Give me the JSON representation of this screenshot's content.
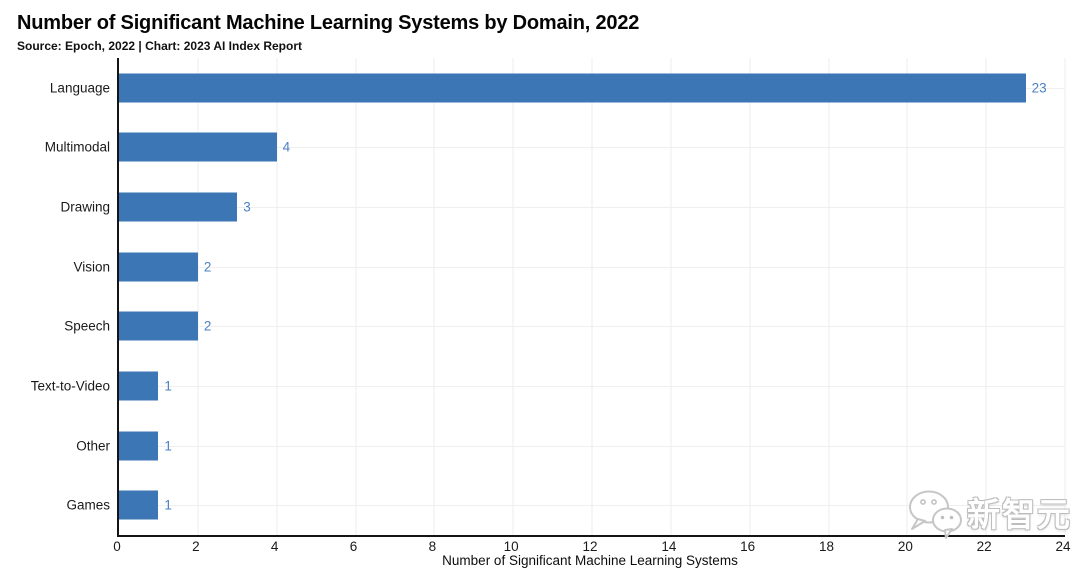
{
  "header": {
    "title": "Number of Significant Machine Learning Systems by Domain, 2022",
    "subtitle": "Source: Epoch, 2022 | Chart: 2023 AI Index Report"
  },
  "chart_data": {
    "type": "bar",
    "orientation": "horizontal",
    "title": "Number of Significant Machine Learning Systems by Domain, 2022",
    "subtitle": "Source: Epoch, 2022 | Chart: 2023 AI Index Report",
    "categories": [
      "Language",
      "Multimodal",
      "Drawing",
      "Vision",
      "Speech",
      "Text-to-Video",
      "Other",
      "Games"
    ],
    "values": [
      23,
      4,
      3,
      2,
      2,
      1,
      1,
      1
    ],
    "xlabel": "Number of Significant Machine Learning Systems",
    "ylabel": "",
    "xlim": [
      0,
      24
    ],
    "xticks": [
      0,
      2,
      4,
      6,
      8,
      10,
      12,
      14,
      16,
      18,
      20,
      22,
      24
    ],
    "grid": true,
    "legend": "none",
    "bar_color": "#3c76b4",
    "value_label_color": "#4d81c3"
  },
  "watermark": {
    "icon": "wechat-icon",
    "text": "新智元"
  },
  "colors": {
    "background": "#ffffff",
    "axis": "#141414",
    "gridline": "#eeeeee",
    "text": "#1a1a1a"
  }
}
